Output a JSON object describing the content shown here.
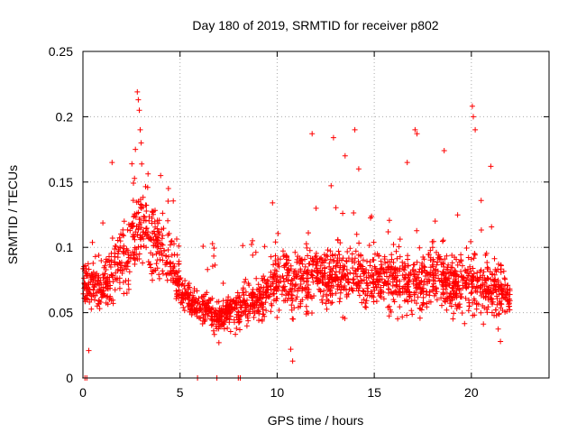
{
  "chart_data": {
    "type": "scatter",
    "title": "Day 180 of 2019, SRMTID for receiver p802",
    "xlabel": "GPS time / hours",
    "ylabel": "SRMTID / TECUs",
    "xlim": [
      0,
      24
    ],
    "ylim": [
      0,
      0.25
    ],
    "x_ticks": [
      0,
      5,
      10,
      15,
      20
    ],
    "x_tick_labels": [
      "0",
      "5",
      "10",
      "15",
      "20"
    ],
    "y_ticks": [
      0,
      0.05,
      0.1,
      0.15,
      0.2,
      0.25
    ],
    "y_tick_labels": [
      "0",
      "0.05",
      "0.1",
      "0.15",
      "0.2",
      "0.25"
    ],
    "grid": true,
    "marker": "+",
    "series": [
      {
        "name": "SRMTID",
        "color": "#ff0000",
        "note": "approximate envelope of a dense scatter (~3000 points); values read off axes",
        "x_hours": [
          0.0,
          0.5,
          1.0,
          1.5,
          2.0,
          2.5,
          3.0,
          3.5,
          4.0,
          4.5,
          5.0,
          5.5,
          6.0,
          6.5,
          7.0,
          7.5,
          8.0,
          8.5,
          9.0,
          9.5,
          10.0,
          10.5,
          11.0,
          11.5,
          12.0,
          12.5,
          13.0,
          13.5,
          14.0,
          14.5,
          15.0,
          15.5,
          16.0,
          16.5,
          17.0,
          17.5,
          18.0,
          18.5,
          19.0,
          19.5,
          20.0,
          20.5,
          21.0,
          21.5,
          22.0
        ],
        "center_tecu": [
          0.075,
          0.07,
          0.07,
          0.08,
          0.09,
          0.1,
          0.12,
          0.11,
          0.1,
          0.09,
          0.07,
          0.06,
          0.055,
          0.05,
          0.045,
          0.05,
          0.055,
          0.055,
          0.06,
          0.065,
          0.075,
          0.075,
          0.07,
          0.075,
          0.08,
          0.08,
          0.08,
          0.08,
          0.08,
          0.075,
          0.075,
          0.075,
          0.075,
          0.07,
          0.075,
          0.075,
          0.08,
          0.075,
          0.07,
          0.075,
          0.075,
          0.07,
          0.07,
          0.065,
          0.06
        ],
        "spread_tecu": [
          0.025,
          0.025,
          0.02,
          0.03,
          0.035,
          0.04,
          0.045,
          0.04,
          0.035,
          0.03,
          0.02,
          0.015,
          0.015,
          0.015,
          0.015,
          0.015,
          0.02,
          0.02,
          0.02,
          0.025,
          0.03,
          0.03,
          0.03,
          0.03,
          0.03,
          0.03,
          0.03,
          0.03,
          0.03,
          0.03,
          0.025,
          0.025,
          0.03,
          0.03,
          0.03,
          0.03,
          0.03,
          0.03,
          0.025,
          0.03,
          0.035,
          0.03,
          0.03,
          0.025,
          0.02
        ],
        "peak_points": [
          [
            2.8,
            0.219
          ],
          [
            2.85,
            0.213
          ],
          [
            2.9,
            0.205
          ],
          [
            2.95,
            0.19
          ],
          [
            3.0,
            0.18
          ],
          [
            2.7,
            0.175
          ],
          [
            1.5,
            0.165
          ],
          [
            4.0,
            0.155
          ],
          [
            11.8,
            0.187
          ],
          [
            12.9,
            0.184
          ],
          [
            14.0,
            0.19
          ],
          [
            14.2,
            0.16
          ],
          [
            17.1,
            0.19
          ],
          [
            17.2,
            0.187
          ],
          [
            18.6,
            0.174
          ],
          [
            20.05,
            0.208
          ],
          [
            20.1,
            0.2
          ],
          [
            20.2,
            0.19
          ],
          [
            21.0,
            0.162
          ],
          [
            13.5,
            0.17
          ],
          [
            16.7,
            0.165
          ]
        ],
        "zero_points": [
          [
            0.1,
            0.0
          ],
          [
            0.2,
            0.0
          ],
          [
            5.9,
            0.0
          ],
          [
            6.9,
            0.0
          ],
          [
            8.0,
            0.0
          ],
          [
            8.1,
            0.0
          ]
        ],
        "outlier_lows": [
          [
            0.3,
            0.021
          ],
          [
            10.8,
            0.013
          ],
          [
            10.7,
            0.022
          ],
          [
            7.0,
            0.027
          ],
          [
            21.5,
            0.028
          ]
        ]
      }
    ]
  }
}
